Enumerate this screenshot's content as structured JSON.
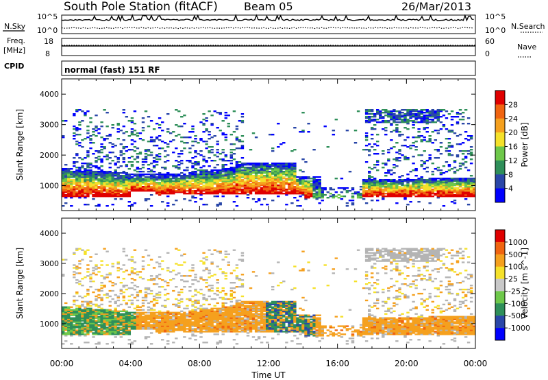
{
  "header": {
    "station": "South Pole Station (fitACF)",
    "beam": "Beam 05",
    "date": "26/Mar/2013"
  },
  "params": {
    "nsky_label": "N.Sky",
    "nsky_top": "10^5",
    "nsky_bottom": "10^0",
    "nsearch_label": "N.Search",
    "nsearch_top": "10^5",
    "nsearch_bottom": "10^0",
    "freq_label_1": "Freq.",
    "freq_label_2": "[MHz]",
    "freq_top": "18",
    "freq_bottom": "8",
    "nave_label": "Nave",
    "nave_top": "60",
    "nave_bottom": "0",
    "cpid_label": "CPID",
    "cpid_value": "normal (fast) 151 RF"
  },
  "chart_data": [
    {
      "type": "heatmap",
      "ylabel": "Slant Range [km]",
      "xlabel": "Time UT",
      "xlim": [
        "00:00",
        "24:00"
      ],
      "ylim": [
        180,
        4500
      ],
      "x_ticks": [
        "00:00",
        "04:00",
        "08:00",
        "12:00",
        "16:00",
        "20:00",
        "00:00"
      ],
      "y_ticks": [
        "1000",
        "2000",
        "3000",
        "4000"
      ],
      "colorbar": {
        "label": "Power [dB]",
        "ticks": [
          "28",
          "24",
          "20",
          "16",
          "12",
          "8",
          "4"
        ],
        "colors": [
          "#0000ff",
          "#2a47a8",
          "#2f8f5a",
          "#6ec84a",
          "#f5e12a",
          "#f5a01e",
          "#f06410",
          "#e00000"
        ]
      }
    },
    {
      "type": "heatmap",
      "ylabel": "Slant Range [km]",
      "xlabel": "Time UT",
      "xlim": [
        "00:00",
        "24:00"
      ],
      "ylim": [
        180,
        4500
      ],
      "x_ticks": [
        "00:00",
        "04:00",
        "08:00",
        "12:00",
        "16:00",
        "20:00",
        "00:00"
      ],
      "y_ticks": [
        "1000",
        "2000",
        "3000",
        "4000"
      ],
      "colorbar": {
        "label": "Velocity [m s^-1]",
        "ticks": [
          "1000",
          "500",
          "100",
          "25",
          "-25",
          "-100",
          "-500",
          "-1000"
        ],
        "colors": [
          "#e00000",
          "#f06410",
          "#f5a01e",
          "#f5e12a",
          "#c8c8c8",
          "#6ec84a",
          "#2f8f5a",
          "#2a47a8",
          "#0000ff"
        ]
      }
    }
  ],
  "panel_colors": {
    "ground_scatter": "#b4b4b4"
  }
}
